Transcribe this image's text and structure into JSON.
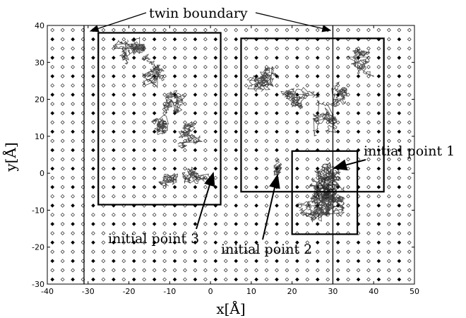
{
  "figure": {
    "xlabel": "x[Å]",
    "ylabel": "y[Å]",
    "xlim": [
      -40,
      50
    ],
    "ylim": [
      -30,
      40
    ],
    "xticks": [
      -40,
      -30,
      -20,
      -10,
      0,
      10,
      20,
      30,
      40,
      50
    ],
    "yticks": [
      -30,
      -20,
      -10,
      0,
      10,
      20,
      30,
      40
    ],
    "lattice_spacing": 2.5,
    "twin_boundaries": [
      -31,
      30
    ],
    "labels": {
      "twin_boundary": "twin boundary",
      "initial_point_1": "initial point 1",
      "initial_point_2": "initial point 2",
      "initial_point_3": "initial point 3"
    },
    "regions": [
      {
        "name": "region-1",
        "xmin": 20,
        "xmax": 36,
        "ymin": -16.5,
        "ymax": 6
      },
      {
        "name": "region-2",
        "xmin": 7.5,
        "xmax": 42.5,
        "ymin": -5,
        "ymax": 36.5
      },
      {
        "name": "region-3",
        "xmin": -27.5,
        "xmax": 2.5,
        "ymin": -8.5,
        "ymax": 38
      }
    ],
    "initial_points": [
      {
        "name": "initial-point-1",
        "x": 30,
        "y": 2
      },
      {
        "name": "initial-point-2",
        "x": 16.5,
        "y": 1
      },
      {
        "name": "initial-point-3",
        "x": 0.5,
        "y": 0
      }
    ],
    "colors": {
      "lattice": "#000000",
      "trajectory": "#1a1a1a",
      "frame": "#000000"
    }
  }
}
